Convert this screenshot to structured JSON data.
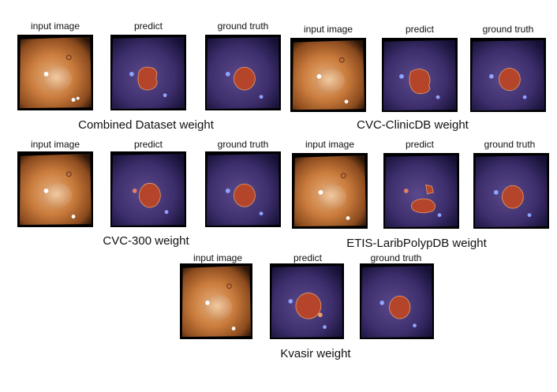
{
  "figure": {
    "panel_labels": {
      "input": "input image",
      "predict": "predict",
      "truth": "ground truth"
    },
    "groups": [
      {
        "caption": "Combined Dataset weight"
      },
      {
        "caption": "CVC-ClinicDB weight"
      },
      {
        "caption": "CVC-300 weight"
      },
      {
        "caption": "ETIS-LaribPolypDB weight"
      },
      {
        "caption": "Kvasir weight"
      }
    ],
    "colors": {
      "tissue": "#c7793a",
      "overlay_bg": "#3f2f6a",
      "mask": "#b5452a",
      "mask_outline": "#e8a06a"
    }
  }
}
